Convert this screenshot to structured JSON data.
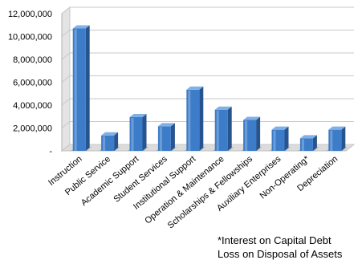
{
  "chart_data": {
    "type": "bar",
    "categories": [
      "Instruction",
      "Public Service",
      "Academic Support",
      "Student Services",
      "Institutional Support",
      "Operation & Maintenance",
      "Scholarships & Fellowships",
      "Auxiliary Enterprises",
      "Non-Operating*",
      "Depreciation"
    ],
    "values": [
      10700000,
      1350000,
      2950000,
      2150000,
      5350000,
      3600000,
      2700000,
      1850000,
      1100000,
      1850000
    ],
    "y_ticks": [
      "-",
      "2,000,000",
      "4,000,000",
      "6,000,000",
      "8,000,000",
      "10,000,000",
      "12,000,000"
    ],
    "ylim": [
      0,
      12000000
    ],
    "grid": true,
    "legend": "none",
    "colors": {
      "bar_front": "#3d7cc9",
      "bar_side": "#27538e",
      "bar_top": "#7fb0e6",
      "grid": "#c8c8c8",
      "wall": "#dcdcdc"
    }
  },
  "footnote": {
    "line1": "*Interest on Capital Debt",
    "line2": "Loss on Disposal of Assets"
  }
}
